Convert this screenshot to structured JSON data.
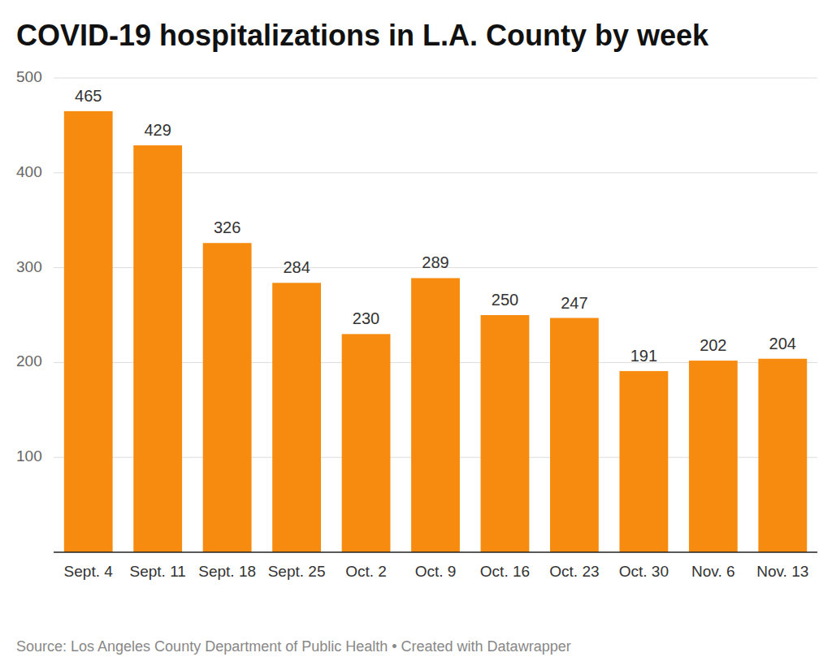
{
  "chart_data": {
    "type": "bar",
    "title": "COVID-19 hospitalizations in L.A. County by week",
    "source": "Source: Los Angeles County Department of Public Health • Created with Datawrapper",
    "categories": [
      "Sept. 4",
      "Sept. 11",
      "Sept. 18",
      "Sept. 25",
      "Oct. 2",
      "Oct. 9",
      "Oct. 16",
      "Oct. 23",
      "Oct. 30",
      "Nov. 6",
      "Nov. 13"
    ],
    "values": [
      465,
      429,
      326,
      284,
      230,
      289,
      250,
      247,
      191,
      202,
      204
    ],
    "color": "#f68b0f",
    "ylim": [
      0,
      500
    ],
    "yticks": [
      100,
      200,
      300,
      400,
      500
    ],
    "grid": true,
    "data_labels": true
  }
}
